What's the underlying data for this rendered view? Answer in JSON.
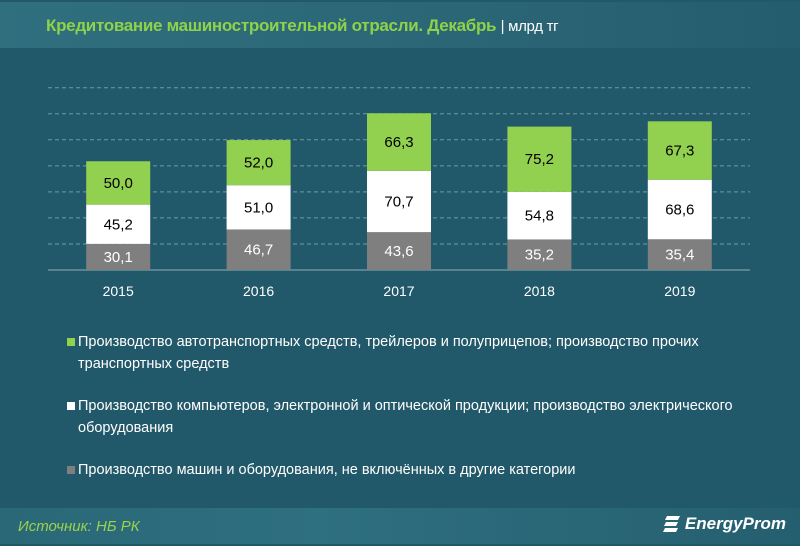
{
  "title": "Кредитование машиностроительной отрасли. Декабрь",
  "unit": "| млрд тг",
  "source": "Источник: НБ РК",
  "logo": "EnergyProm",
  "chart_data": {
    "type": "stacked-bar",
    "categories": [
      "2015",
      "2016",
      "2017",
      "2018",
      "2019"
    ],
    "ylim": [
      0,
      210
    ],
    "grid": true,
    "legend_position": "bottom",
    "series": [
      {
        "name": "Производство машин и оборудования, не включённых в другие категории",
        "color": "#7f7f7f",
        "label_color": "#ffffff",
        "values": [
          30.1,
          46.7,
          43.6,
          35.2,
          35.4
        ],
        "labels": [
          "30,1",
          "46,7",
          "43,6",
          "35,2",
          "35,4"
        ]
      },
      {
        "name": "Производство компьютеров, электронной и оптической продукции; производство электрического оборудования",
        "color": "#ffffff",
        "label_color": "#000000",
        "values": [
          45.2,
          51.0,
          70.7,
          54.8,
          68.6
        ],
        "labels": [
          "45,2",
          "51,0",
          "70,7",
          "54,8",
          "68,6"
        ]
      },
      {
        "name": "Производство автотранспортных средств, трейлеров и полуприцепов; производство прочих транспортных средств",
        "color": "#92d050",
        "label_color": "#000000",
        "values": [
          50.0,
          52.0,
          66.3,
          75.2,
          67.3
        ],
        "labels": [
          "50,0",
          "52,0",
          "66,3",
          "75,2",
          "67,3"
        ]
      }
    ]
  }
}
